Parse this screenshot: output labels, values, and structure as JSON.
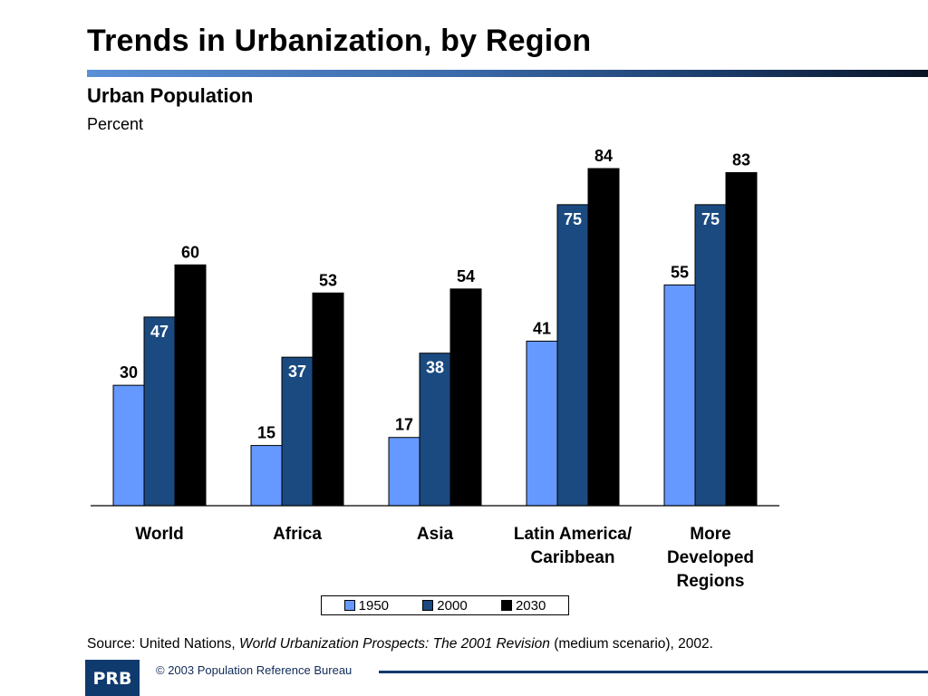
{
  "header": {
    "title": "Trends in Urbanization, by Region"
  },
  "chart_data": {
    "type": "bar",
    "title": "Urban Population",
    "ylabel": "Percent",
    "categories": [
      [
        "World"
      ],
      [
        "Africa"
      ],
      [
        "Asia"
      ],
      [
        "Latin America/",
        "Caribbean"
      ],
      [
        "More",
        "Developed",
        "Regions"
      ]
    ],
    "series": [
      {
        "name": "1950",
        "color": "#6699ff",
        "values": [
          30,
          15,
          17,
          41,
          55
        ]
      },
      {
        "name": "2000",
        "color": "#1a4a80",
        "values": [
          47,
          37,
          38,
          75,
          75
        ]
      },
      {
        "name": "2030",
        "color": "#000000",
        "values": [
          60,
          53,
          54,
          84,
          83
        ]
      }
    ],
    "ylim": [
      0,
      84
    ],
    "grid": false,
    "legend": "bottom-center"
  },
  "source": {
    "prefix": "Source: United Nations, ",
    "publication": "World Urbanization Prospects: The 2001 Revision",
    "suffix": " (medium scenario), 2002."
  },
  "footer": {
    "copyright": "© 2003 Population Reference Bureau",
    "logo_text": "PRB"
  }
}
